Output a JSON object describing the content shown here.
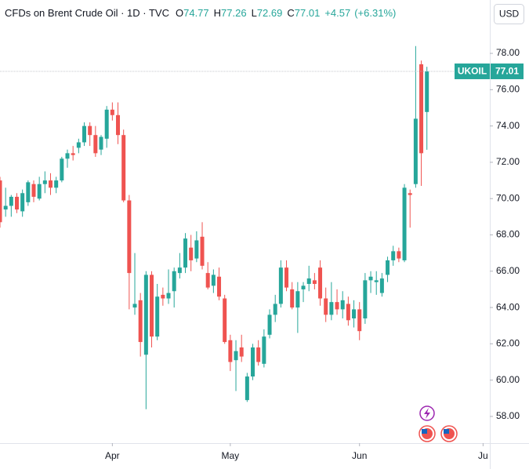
{
  "chart_data": {
    "type": "candlestick",
    "title": "CFDs on Brent Crude Oil · 1D · TVC",
    "legend": {
      "open_label": "O",
      "high_label": "H",
      "low_label": "L",
      "close_label": "C",
      "change": "+4.57",
      "change_percent": "(+6.31%)"
    },
    "symbol": "UKOIL",
    "currency": "USD",
    "up_color": "#26a69a",
    "down_color": "#ef5350",
    "grid": false,
    "current_price_line": true,
    "open": [
      71.0,
      69.4,
      69.6,
      70.1,
      69.3,
      69.8,
      70.8,
      70.0,
      70.8,
      71.0,
      70.6,
      71.0,
      72.2,
      72.5,
      72.8,
      73.1,
      74.0,
      73.5,
      72.7,
      73.3,
      74.9,
      74.6,
      73.5,
      69.9,
      64.0,
      64.4,
      61.4,
      65.8,
      62.4,
      64.7,
      64.5,
      64.9,
      65.9,
      66.2,
      67.3,
      66.7,
      67.9,
      65.9,
      65.2,
      65.7,
      64.5,
      62.2,
      61.1,
      61.8,
      58.9,
      60.2,
      61.8,
      60.9,
      62.5,
      63.6,
      64.2,
      66.2,
      65.0,
      64.0,
      65.0,
      65.3,
      65.5,
      66.2,
      64.5,
      63.6,
      64.3,
      63.9,
      64.2,
      63.4,
      63.9,
      63.4,
      65.5,
      65.4,
      64.8,
      65.8,
      66.6,
      67.1,
      66.6,
      70.3,
      70.8,
      77.4,
      74.77
    ],
    "high": [
      71.2,
      70.6,
      70.2,
      70.3,
      70.5,
      71.0,
      71.0,
      71.2,
      71.5,
      71.4,
      71.2,
      72.3,
      72.7,
      72.9,
      73.3,
      74.2,
      74.2,
      74.0,
      73.5,
      75.1,
      75.3,
      75.3,
      73.8,
      70.2,
      67.0,
      64.8,
      66.0,
      66.0,
      65.3,
      65.1,
      66.1,
      66.2,
      67.0,
      68.1,
      68.0,
      68.2,
      68.7,
      66.5,
      66.1,
      66.2,
      64.7,
      62.5,
      62.2,
      62.5,
      60.4,
      62.0,
      62.2,
      62.8,
      63.9,
      64.7,
      66.6,
      66.6,
      65.4,
      65.4,
      65.4,
      66.3,
      65.9,
      66.6,
      65.1,
      65.4,
      65.0,
      64.9,
      64.6,
      64.4,
      64.3,
      65.9,
      66.0,
      66.0,
      65.9,
      66.8,
      67.4,
      67.3,
      70.8,
      70.5,
      78.4,
      77.6,
      77.26
    ],
    "low": [
      68.4,
      69.0,
      69.0,
      69.2,
      69.0,
      69.6,
      69.8,
      69.9,
      70.3,
      70.2,
      70.3,
      70.9,
      71.7,
      72.1,
      72.5,
      72.9,
      72.9,
      72.3,
      72.4,
      72.8,
      74.3,
      73.0,
      69.8,
      63.9,
      63.6,
      61.3,
      58.4,
      61.8,
      62.2,
      64.1,
      64.2,
      64.0,
      65.6,
      65.9,
      66.0,
      66.5,
      66.1,
      65.0,
      64.8,
      64.4,
      62.0,
      60.5,
      59.4,
      61.0,
      58.8,
      60.0,
      60.8,
      60.7,
      62.3,
      63.2,
      64.0,
      64.9,
      63.9,
      62.6,
      64.3,
      64.9,
      65.0,
      64.1,
      63.2,
      63.3,
      63.6,
      63.4,
      63.0,
      62.9,
      62.2,
      63.1,
      64.8,
      64.7,
      64.6,
      65.4,
      66.3,
      66.5,
      66.5,
      68.4,
      70.6,
      70.7,
      72.69
    ],
    "close": [
      68.7,
      69.6,
      70.1,
      69.4,
      70.3,
      70.9,
      70.1,
      70.8,
      71.0,
      70.6,
      71.0,
      72.2,
      72.5,
      72.4,
      73.1,
      74.0,
      73.5,
      72.5,
      73.4,
      74.9,
      74.6,
      73.5,
      69.9,
      65.9,
      64.2,
      62.1,
      65.8,
      62.4,
      64.6,
      64.5,
      64.8,
      66.0,
      66.2,
      67.8,
      66.6,
      67.7,
      66.3,
      65.1,
      65.8,
      64.6,
      62.1,
      61.0,
      61.6,
      61.3,
      60.2,
      61.8,
      61.0,
      62.4,
      63.6,
      64.2,
      66.2,
      65.1,
      64.0,
      64.9,
      65.2,
      65.6,
      65.3,
      64.5,
      63.6,
      64.3,
      63.9,
      64.4,
      63.3,
      63.9,
      62.7,
      65.5,
      65.7,
      65.5,
      65.6,
      66.6,
      67.1,
      66.7,
      70.6,
      70.2,
      74.4,
      72.5,
      77.01
    ],
    "xlim": [
      0,
      87.2
    ],
    "xticks": [
      {
        "value": 20,
        "label": "Apr"
      },
      {
        "value": 41,
        "label": "May"
      },
      {
        "value": 64,
        "label": "Jun"
      },
      {
        "value": 86,
        "label": "Ju"
      }
    ],
    "ylim": [
      56.53,
      80.94
    ],
    "yticks": [
      {
        "value": 58,
        "label": "58.00"
      },
      {
        "value": 60,
        "label": "60.00"
      },
      {
        "value": 62,
        "label": "62.00"
      },
      {
        "value": 64,
        "label": "64.00"
      },
      {
        "value": 66,
        "label": "66.00"
      },
      {
        "value": 68,
        "label": "68.00"
      },
      {
        "value": 70,
        "label": "70.00"
      },
      {
        "value": 72,
        "label": "72.00"
      },
      {
        "value": 74,
        "label": "74.00"
      },
      {
        "value": 76,
        "label": "76.00"
      },
      {
        "value": 78,
        "label": "78.00"
      }
    ]
  }
}
